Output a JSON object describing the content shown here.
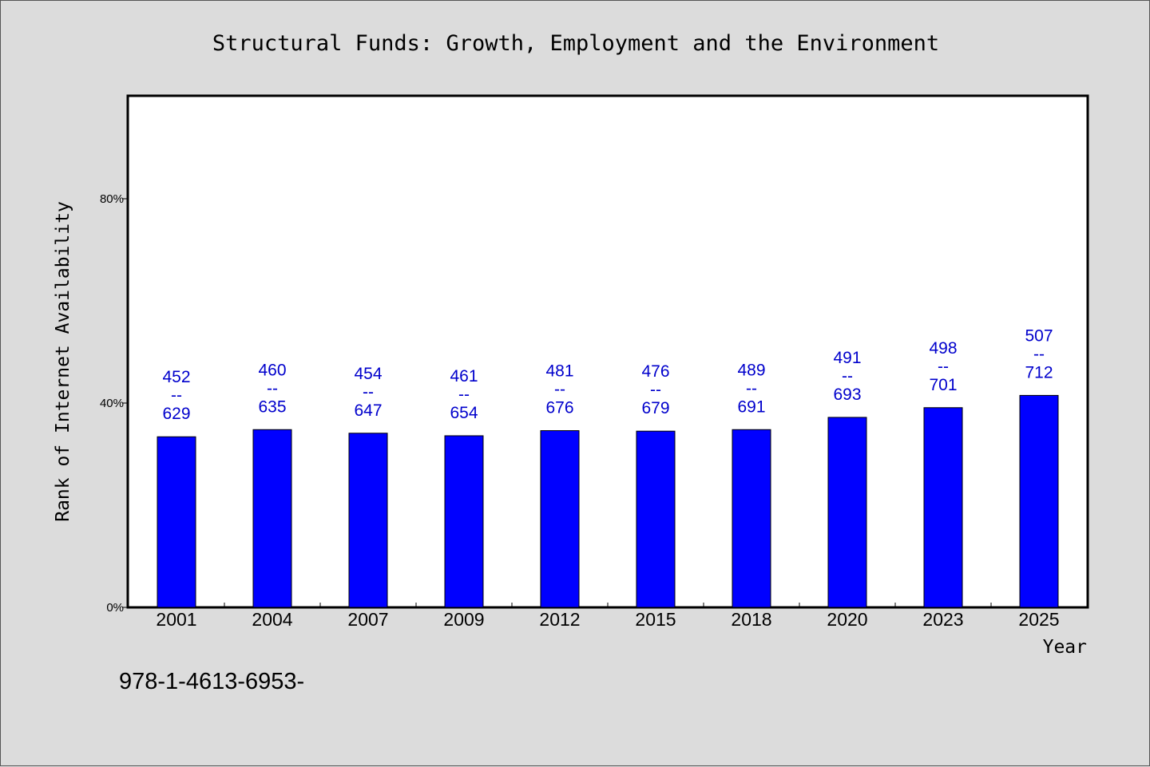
{
  "chart_data": {
    "type": "bar",
    "title": "Structural Funds: Growth, Employment and the Environment",
    "xlabel": "Year",
    "ylabel": "Rank of Internet Availability",
    "ylim": [
      0,
      100
    ],
    "yticks": [
      {
        "value": 0,
        "label": "0%"
      },
      {
        "value": 40,
        "label": "40%"
      },
      {
        "value": 80,
        "label": "80%"
      }
    ],
    "categories": [
      "2001",
      "2004",
      "2007",
      "2009",
      "2012",
      "2015",
      "2018",
      "2020",
      "2023",
      "2025"
    ],
    "values": [
      33.4,
      34.8,
      34.1,
      33.6,
      34.6,
      34.5,
      34.8,
      37.2,
      39.1,
      41.5
    ],
    "labels": [
      {
        "top": "452",
        "sep": "--",
        "bottom": "629"
      },
      {
        "top": "460",
        "sep": "--",
        "bottom": "635"
      },
      {
        "top": "454",
        "sep": "--",
        "bottom": "647"
      },
      {
        "top": "461",
        "sep": "--",
        "bottom": "654"
      },
      {
        "top": "481",
        "sep": "--",
        "bottom": "676"
      },
      {
        "top": "476",
        "sep": "--",
        "bottom": "679"
      },
      {
        "top": "489",
        "sep": "--",
        "bottom": "691"
      },
      {
        "top": "491",
        "sep": "--",
        "bottom": "693"
      },
      {
        "top": "498",
        "sep": "--",
        "bottom": "701"
      },
      {
        "top": "507",
        "sep": "--",
        "bottom": "712"
      }
    ],
    "bar_color": "#0000ff",
    "label_color": "#0000cc",
    "grid": false,
    "legend": "none"
  },
  "footer_text": "978-1-4613-6953-"
}
